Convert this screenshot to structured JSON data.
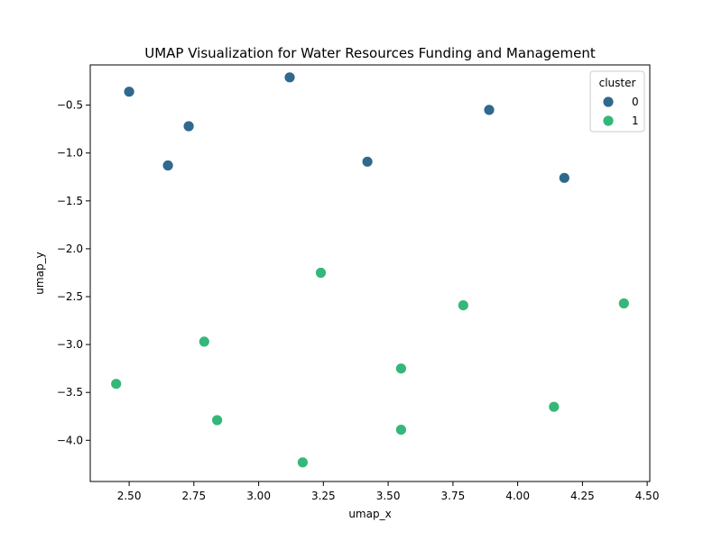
{
  "chart_data": {
    "type": "scatter",
    "title": "UMAP Visualization for Water Resources Funding and Management",
    "xlabel": "umap_x",
    "ylabel": "umap_y",
    "xlim": [
      2.35,
      4.51
    ],
    "ylim": [
      -4.43,
      -0.08
    ],
    "x_ticks": [
      2.5,
      2.75,
      3.0,
      3.25,
      3.5,
      3.75,
      4.0,
      4.25,
      4.5
    ],
    "x_tick_labels": [
      "2.50",
      "2.75",
      "3.00",
      "3.25",
      "3.50",
      "3.75",
      "4.00",
      "4.25",
      "4.50"
    ],
    "y_ticks": [
      -0.5,
      -1.0,
      -1.5,
      -2.0,
      -2.5,
      -3.0,
      -3.5,
      -4.0
    ],
    "y_tick_labels": [
      "−0.5",
      "−1.0",
      "−1.5",
      "−2.0",
      "−2.5",
      "−3.0",
      "−3.5",
      "−4.0"
    ],
    "grid": false,
    "legend": {
      "title": "cluster",
      "placement": "top-right"
    },
    "series": [
      {
        "name": "0",
        "color": "#31688e",
        "points": [
          [
            2.5,
            -0.36
          ],
          [
            3.12,
            -0.21
          ],
          [
            2.73,
            -0.72
          ],
          [
            2.65,
            -1.13
          ],
          [
            3.89,
            -0.55
          ],
          [
            3.42,
            -1.09
          ],
          [
            4.18,
            -1.26
          ]
        ]
      },
      {
        "name": "1",
        "color": "#35b779",
        "points": [
          [
            3.24,
            -2.25
          ],
          [
            3.79,
            -2.59
          ],
          [
            4.41,
            -2.57
          ],
          [
            2.79,
            -2.97
          ],
          [
            3.55,
            -3.25
          ],
          [
            2.45,
            -3.41
          ],
          [
            4.14,
            -3.65
          ],
          [
            2.84,
            -3.79
          ],
          [
            3.55,
            -3.89
          ],
          [
            3.17,
            -4.23
          ]
        ]
      }
    ]
  }
}
